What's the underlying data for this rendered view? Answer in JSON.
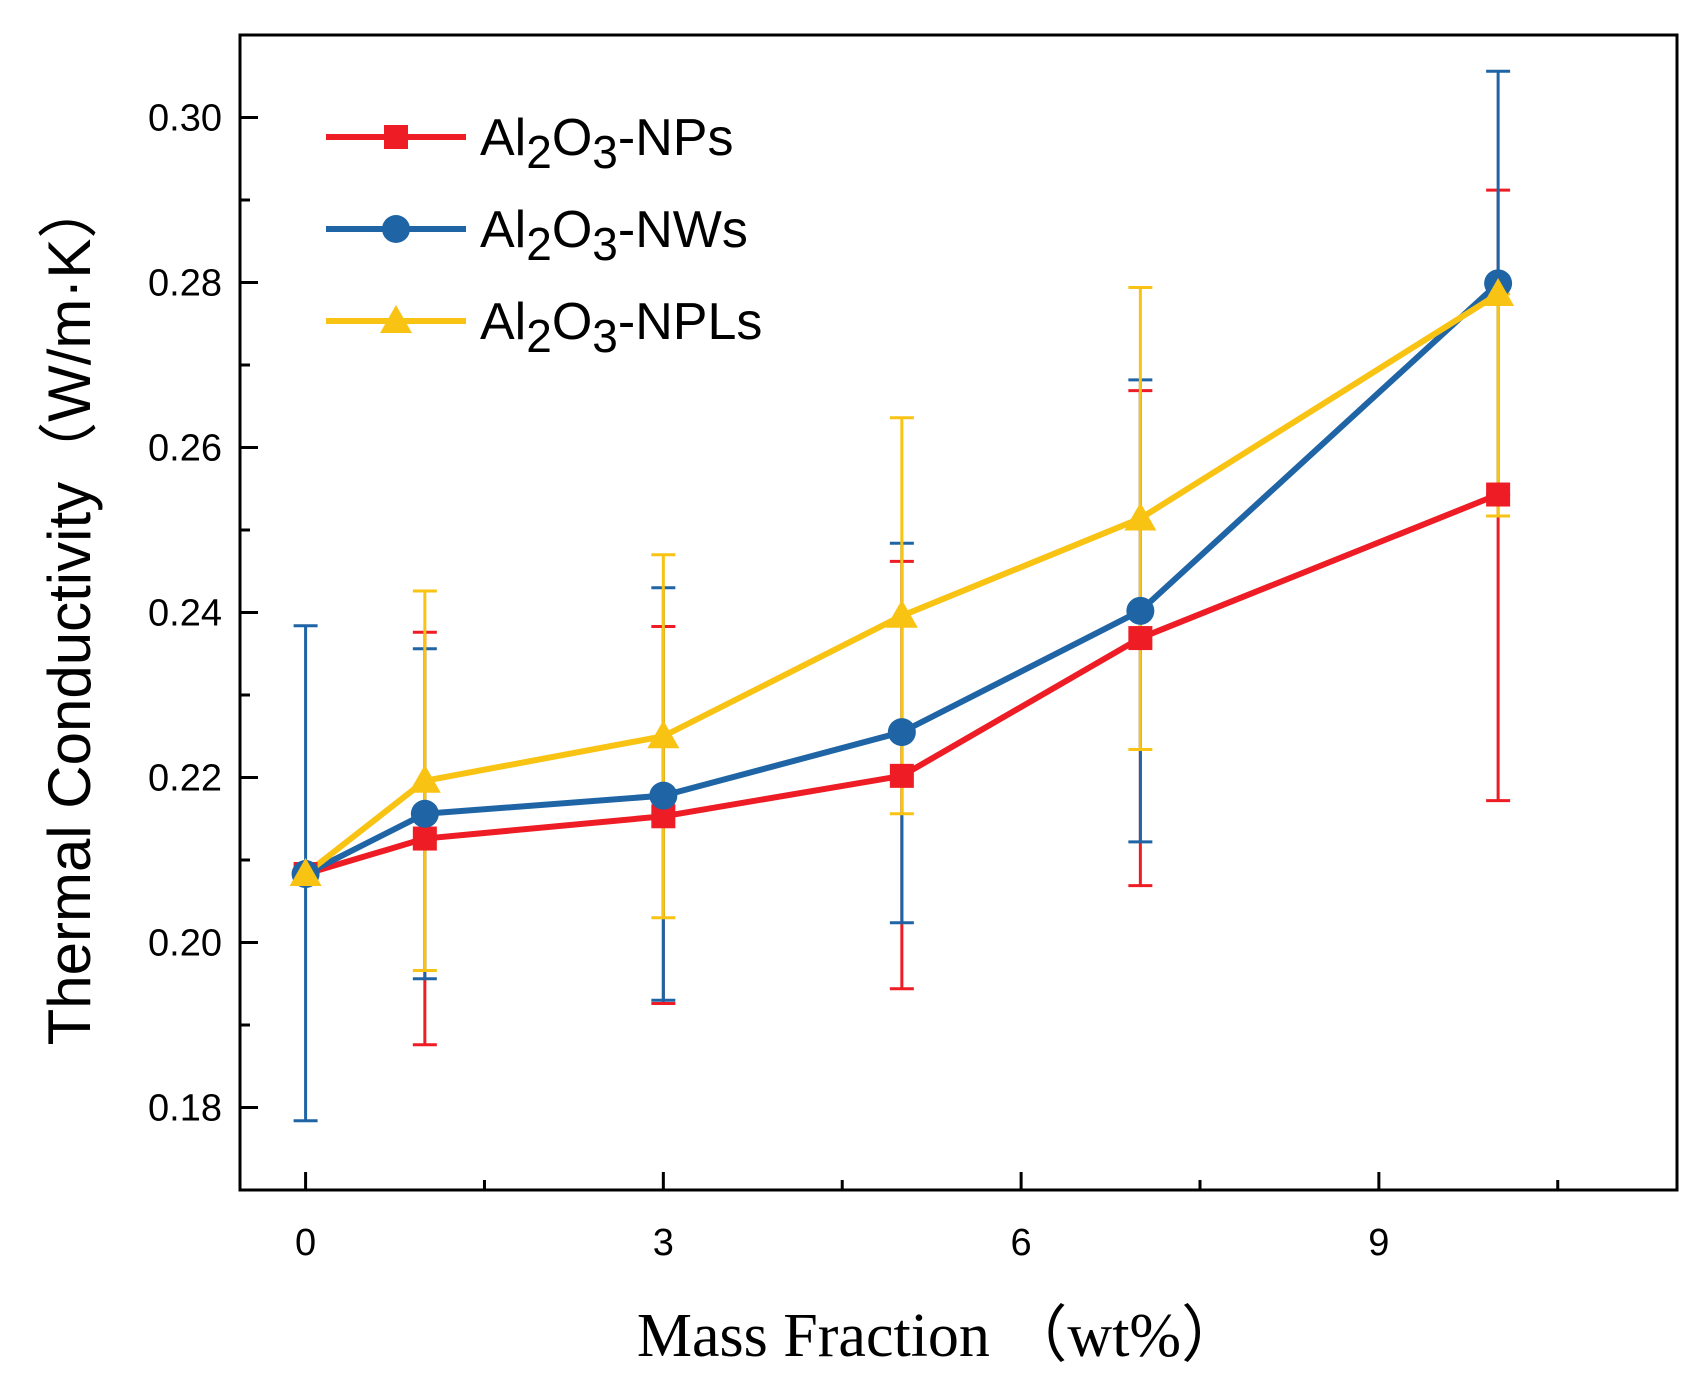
{
  "chart_data": {
    "type": "line",
    "title": "",
    "xlabel": "Mass Fraction （wt%）",
    "ylabel": "Thermal Conductivity（W/m·K）",
    "xlim": [
      -0.55,
      11.5
    ],
    "ylim": [
      0.17,
      0.31
    ],
    "x_ticks": [
      0,
      3,
      6,
      9
    ],
    "x_tick_labels": [
      "0",
      "3",
      "6",
      "9"
    ],
    "x_minor_ticks": [
      1.5,
      4.5,
      7.5,
      10.5
    ],
    "y_ticks": [
      0.18,
      0.2,
      0.22,
      0.24,
      0.26,
      0.28,
      0.3
    ],
    "y_tick_labels": [
      "0.18",
      "0.20",
      "0.22",
      "0.24",
      "0.26",
      "0.28",
      "0.30"
    ],
    "y_minor_ticks": [
      0.17,
      0.19,
      0.21,
      0.23,
      0.25,
      0.27,
      0.29
    ],
    "grid": false,
    "legend_position": "top-left",
    "x": [
      0,
      1,
      3,
      5,
      7,
      10
    ],
    "series": [
      {
        "name_parts": [
          "Al",
          "2",
          "O",
          "3",
          "-NPs"
        ],
        "color": "#ee1c24",
        "marker": "square",
        "values": [
          0.2083,
          0.2126,
          0.2153,
          0.2202,
          0.2369,
          0.2543
        ],
        "err_low": [
          0.2083,
          0.1876,
          0.1926,
          0.1944,
          0.2069,
          0.2172
        ],
        "err_high": [
          0.2083,
          0.2376,
          0.2383,
          0.2462,
          0.2669,
          0.2912
        ]
      },
      {
        "name_parts": [
          "Al",
          "2",
          "O",
          "3",
          "-NWs"
        ],
        "color": "#1f65a6",
        "marker": "circle",
        "values": [
          0.2083,
          0.2156,
          0.2178,
          0.2255,
          0.2402,
          0.2799
        ],
        "err_low": [
          0.1784,
          0.1956,
          0.193,
          0.2024,
          0.2122,
          0.2543
        ],
        "err_high": [
          0.2384,
          0.2356,
          0.243,
          0.2484,
          0.2682,
          0.3056
        ]
      },
      {
        "name_parts": [
          "Al",
          "2",
          "O",
          "3",
          "-NPLs"
        ],
        "color": "#f8c313",
        "marker": "triangle",
        "values": [
          0.2083,
          0.2196,
          0.225,
          0.2396,
          0.2514,
          0.2786
        ],
        "err_low": [
          0.2083,
          0.1966,
          0.203,
          0.2156,
          0.2234,
          0.2517
        ],
        "err_high": [
          0.2083,
          0.2426,
          0.247,
          0.2636,
          0.2794,
          0.2786
        ]
      }
    ]
  }
}
